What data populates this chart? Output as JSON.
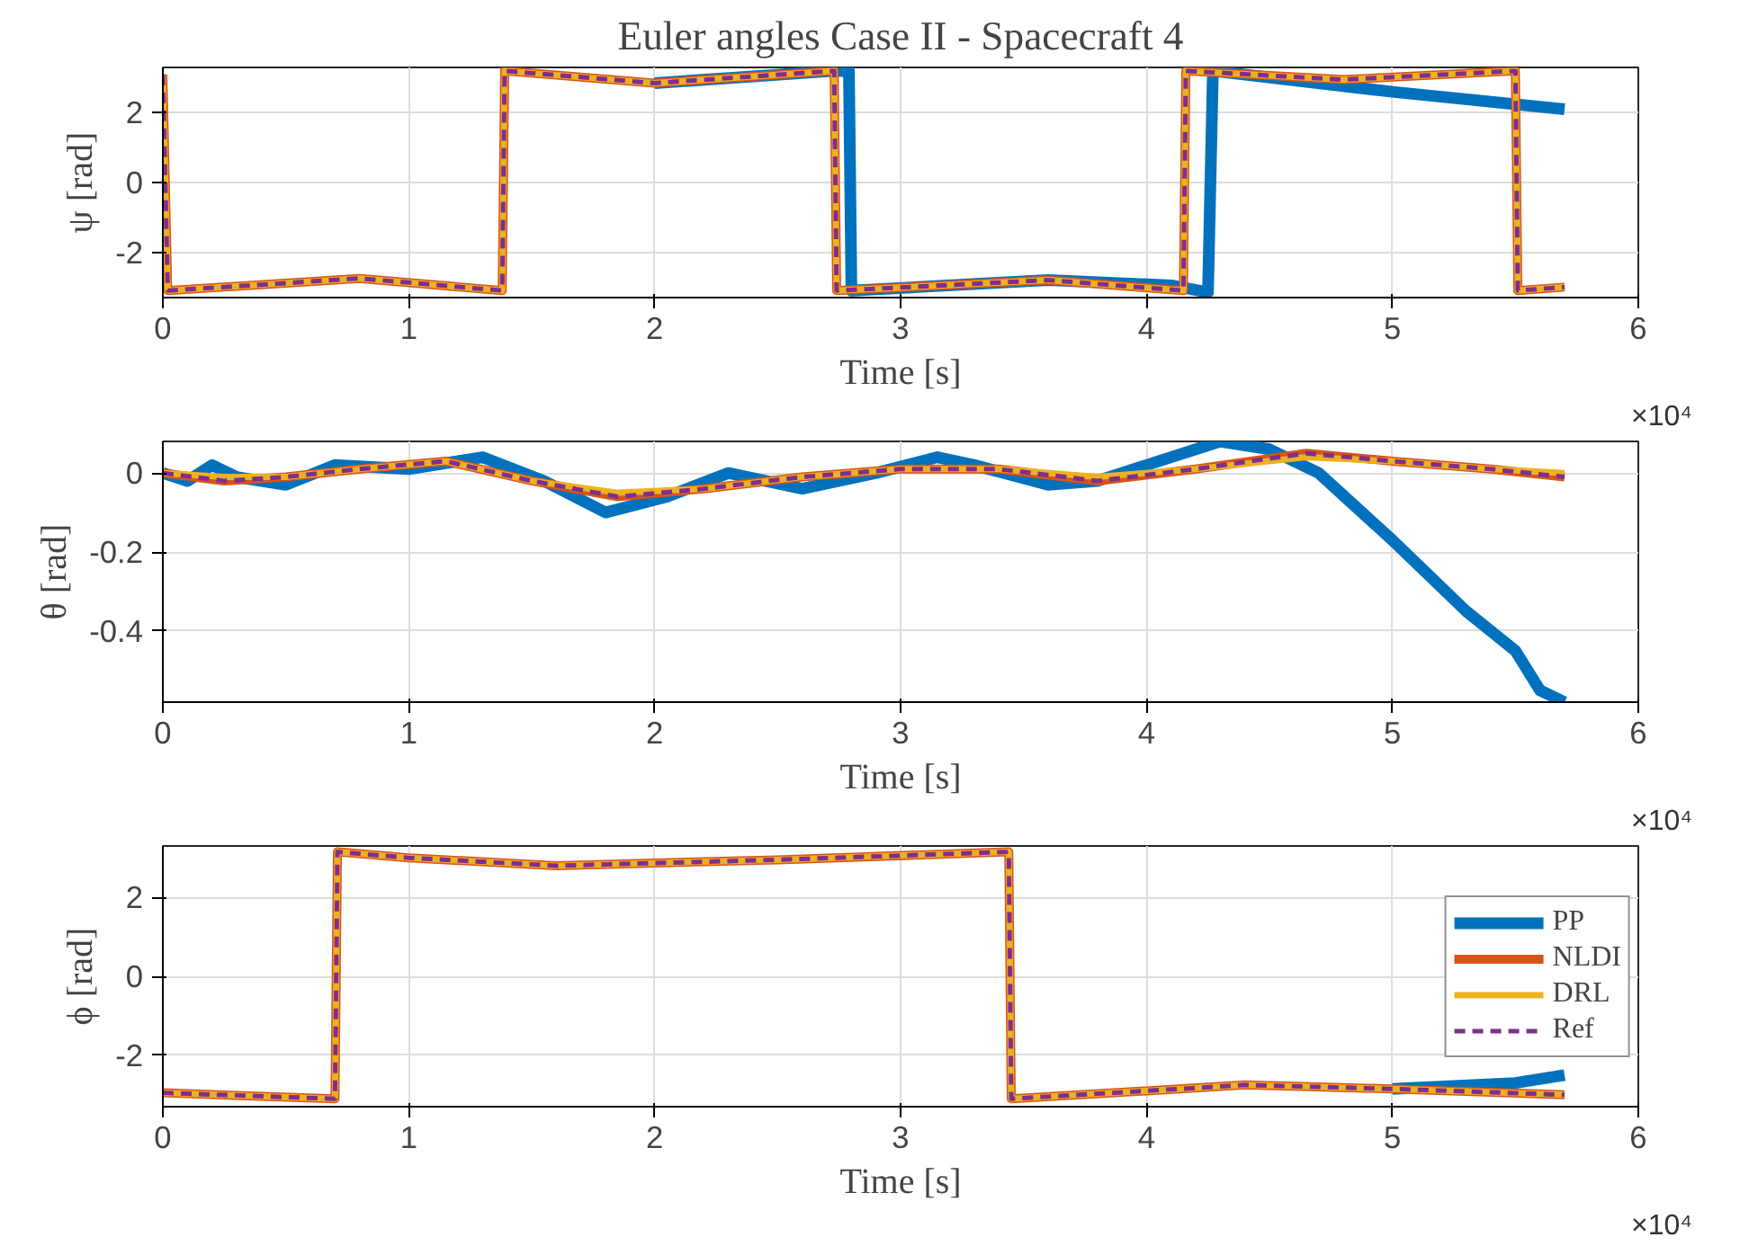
{
  "chart_data": [
    {
      "type": "line",
      "title": "Euler angles Case II - Spacecraft 4",
      "xlabel": "Time [s]",
      "ylabel": "ψ [rad]",
      "annotations": [
        "×10⁴"
      ],
      "xlim": [
        0,
        6
      ],
      "xticks": [
        0,
        1,
        2,
        3,
        4,
        5,
        6
      ],
      "ylim": [
        -3.3,
        3.3
      ],
      "yticks": [
        -2,
        0,
        2
      ],
      "grid": true,
      "series": [
        {
          "color": "#0072bd",
          "x": [
            2.0,
            2.73,
            2.79,
            2.8,
            3.6,
            4.1,
            4.25,
            4.27,
            5.0,
            5.7
          ],
          "values": [
            2.85,
            3.2,
            3.2,
            -3.1,
            -2.8,
            -2.95,
            -3.15,
            3.2,
            2.6,
            2.1
          ]
        },
        {
          "color": "#d95319",
          "x": [
            0,
            0.02,
            0.8,
            1.38,
            1.39,
            2.0,
            2.73,
            2.74,
            3.6,
            4.15,
            4.16,
            4.8,
            5.5,
            5.51,
            5.7
          ],
          "values": [
            3.1,
            -3.1,
            -2.75,
            -3.1,
            3.2,
            2.85,
            3.2,
            -3.1,
            -2.8,
            -3.1,
            3.2,
            2.95,
            3.2,
            -3.1,
            -3.0
          ]
        },
        {
          "color": "#edb120",
          "x": [
            0,
            0.02,
            0.8,
            1.38,
            1.39,
            2.0,
            2.73,
            2.74,
            3.6,
            4.15,
            4.16,
            4.8,
            5.5,
            5.51,
            5.7
          ],
          "values": [
            3.1,
            -3.1,
            -2.75,
            -3.1,
            3.2,
            2.85,
            3.2,
            -3.1,
            -2.8,
            -3.1,
            3.2,
            2.95,
            3.2,
            -3.1,
            -3.0
          ]
        },
        {
          "color": "#7e2f8e",
          "line_style": "dashed",
          "x": [
            0,
            0.02,
            0.8,
            1.38,
            1.39,
            2.0,
            2.73,
            2.74,
            3.6,
            4.15,
            4.16,
            4.8,
            5.5,
            5.51,
            5.7
          ],
          "values": [
            3.1,
            -3.1,
            -2.75,
            -3.1,
            3.2,
            2.85,
            3.2,
            -3.1,
            -2.8,
            -3.1,
            3.2,
            2.95,
            3.2,
            -3.1,
            -3.0
          ]
        }
      ]
    },
    {
      "type": "line",
      "xlabel": "Time [s]",
      "ylabel": "θ [rad]",
      "annotations": [
        "×10⁴"
      ],
      "xlim": [
        0,
        6
      ],
      "xticks": [
        0,
        1,
        2,
        3,
        4,
        5,
        6
      ],
      "ylim": [
        -0.58,
        0.08
      ],
      "yticks": [
        -0.4,
        -0.2,
        0
      ],
      "grid": true,
      "series": [
        {
          "color": "#0072bd",
          "x": [
            0,
            0.1,
            0.2,
            0.3,
            0.5,
            0.7,
            1.0,
            1.3,
            1.55,
            1.8,
            2.05,
            2.3,
            2.6,
            2.9,
            3.15,
            3.3,
            3.6,
            3.8,
            4.0,
            4.3,
            4.5,
            4.7,
            5.0,
            5.3,
            5.5,
            5.6,
            5.7
          ],
          "values": [
            0,
            -0.02,
            0.02,
            -0.01,
            -0.03,
            0.02,
            0.01,
            0.04,
            -0.02,
            -0.1,
            -0.06,
            0.0,
            -0.04,
            0.0,
            0.04,
            0.02,
            -0.03,
            -0.02,
            0.02,
            0.08,
            0.06,
            0.0,
            -0.17,
            -0.35,
            -0.45,
            -0.55,
            -0.58
          ]
        },
        {
          "color": "#d95319",
          "x": [
            0,
            0.25,
            0.5,
            0.8,
            1.15,
            1.5,
            1.85,
            2.2,
            2.6,
            3.0,
            3.4,
            3.8,
            4.2,
            4.65,
            5.0,
            5.4,
            5.7
          ],
          "values": [
            0,
            -0.02,
            -0.01,
            0.01,
            0.03,
            -0.02,
            -0.06,
            -0.04,
            -0.01,
            0.01,
            0.01,
            -0.02,
            0.01,
            0.05,
            0.03,
            0.01,
            -0.01
          ]
        },
        {
          "color": "#edb120",
          "x": [
            0,
            0.25,
            0.5,
            0.8,
            1.15,
            1.5,
            1.85,
            2.2,
            2.6,
            3.0,
            3.4,
            3.8,
            4.2,
            4.65,
            5.0,
            5.4,
            5.7
          ],
          "values": [
            0,
            -0.01,
            -0.01,
            0.01,
            0.03,
            -0.02,
            -0.05,
            -0.04,
            -0.01,
            0.01,
            0.01,
            -0.01,
            0.01,
            0.04,
            0.03,
            0.01,
            0.0
          ]
        },
        {
          "color": "#7e2f8e",
          "line_style": "dashed",
          "x": [
            0,
            0.25,
            0.5,
            0.8,
            1.15,
            1.5,
            1.85,
            2.2,
            2.6,
            3.0,
            3.4,
            3.8,
            4.2,
            4.65,
            5.0,
            5.4,
            5.7
          ],
          "values": [
            0,
            -0.02,
            -0.01,
            0.01,
            0.03,
            -0.02,
            -0.06,
            -0.04,
            -0.01,
            0.01,
            0.01,
            -0.02,
            0.01,
            0.05,
            0.03,
            0.01,
            -0.01
          ]
        }
      ]
    },
    {
      "type": "line",
      "xlabel": "Time [s]",
      "ylabel": "ϕ [rad]",
      "annotations": [
        "×10⁴"
      ],
      "xlim": [
        0,
        6
      ],
      "xticks": [
        0,
        1,
        2,
        3,
        4,
        5,
        6
      ],
      "ylim": [
        -3.3,
        3.3
      ],
      "yticks": [
        -2,
        0,
        2
      ],
      "grid": true,
      "legend": "right",
      "series": [
        {
          "name": "PP",
          "color": "#0072bd",
          "x": [
            5.0,
            5.5,
            5.7
          ],
          "values": [
            -2.85,
            -2.7,
            -2.5
          ]
        },
        {
          "name": "NLDI",
          "color": "#d95319",
          "x": [
            0,
            0.7,
            0.71,
            1.0,
            1.6,
            2.5,
            3.44,
            3.45,
            4.0,
            4.4,
            5.0,
            5.7
          ],
          "values": [
            -2.95,
            -3.1,
            3.15,
            3.0,
            2.8,
            2.95,
            3.15,
            -3.1,
            -2.9,
            -2.75,
            -2.85,
            -3.0
          ]
        },
        {
          "name": "DRL",
          "color": "#edb120",
          "x": [
            0,
            0.7,
            0.71,
            1.0,
            1.6,
            2.5,
            3.44,
            3.45,
            4.0,
            4.4,
            5.0,
            5.7
          ],
          "values": [
            -2.95,
            -3.1,
            3.15,
            3.0,
            2.8,
            2.95,
            3.15,
            -3.1,
            -2.9,
            -2.75,
            -2.85,
            -3.0
          ]
        },
        {
          "name": "Ref",
          "color": "#7e2f8e",
          "line_style": "dashed",
          "x": [
            0,
            0.7,
            0.71,
            1.0,
            1.6,
            2.5,
            3.44,
            3.45,
            4.0,
            4.4,
            5.0,
            5.7
          ],
          "values": [
            -2.95,
            -3.1,
            3.15,
            3.0,
            2.8,
            2.95,
            3.15,
            -3.1,
            -2.9,
            -2.75,
            -2.85,
            -3.0
          ]
        }
      ]
    }
  ]
}
